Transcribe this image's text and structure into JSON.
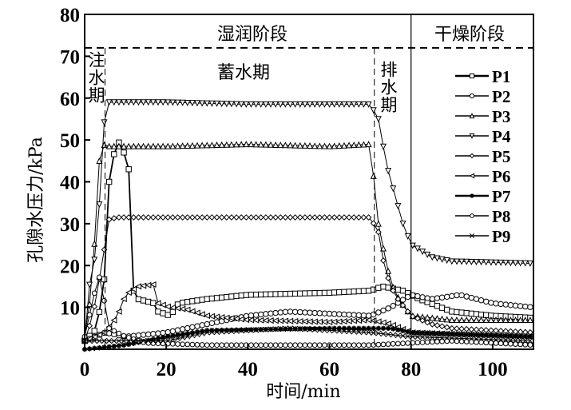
{
  "chart_data": {
    "type": "line",
    "xlabel": "时间/min",
    "ylabel": "孔隙水压力/kPa",
    "xlim": [
      0,
      110
    ],
    "ylim": [
      0,
      80
    ],
    "xticks": [
      "0",
      "20",
      "40",
      "60",
      "80",
      "100"
    ],
    "yticks": [
      "10",
      "20",
      "30",
      "40",
      "50",
      "60",
      "70",
      "80"
    ],
    "legend_position": "top-right",
    "reference_lines": {
      "horizontal_dashed_y": 72,
      "vertical_dashed_x": [
        5,
        71
      ],
      "vertical_solid_x": 80
    },
    "annotations": {
      "wet_stage": "湿润阶段",
      "dry_stage": "干燥阶段",
      "injection": "注水期",
      "storage": "蓄水期",
      "drainage": "排水期"
    },
    "series": [
      {
        "name": "P1",
        "marker": "square",
        "points": [
          [
            0,
            2
          ],
          [
            3,
            5
          ],
          [
            5,
            18
          ],
          [
            6,
            40
          ],
          [
            8,
            51
          ],
          [
            9,
            47
          ],
          [
            10,
            47
          ],
          [
            11,
            42
          ],
          [
            12,
            14
          ],
          [
            13,
            12
          ],
          [
            17,
            11
          ],
          [
            18,
            9
          ],
          [
            21,
            8
          ],
          [
            23,
            11
          ],
          [
            30,
            12
          ],
          [
            40,
            13
          ],
          [
            60,
            13.5
          ],
          [
            70,
            14
          ],
          [
            73,
            15
          ],
          [
            78,
            14
          ],
          [
            82,
            12
          ],
          [
            90,
            9
          ],
          [
            100,
            8
          ],
          [
            110,
            7.5
          ]
        ]
      },
      {
        "name": "P2",
        "marker": "circle",
        "points": [
          [
            0,
            2
          ],
          [
            5,
            4
          ],
          [
            10,
            3
          ],
          [
            20,
            4
          ],
          [
            30,
            6
          ],
          [
            40,
            8
          ],
          [
            50,
            9
          ],
          [
            70,
            8
          ],
          [
            75,
            10
          ],
          [
            80,
            13
          ],
          [
            85,
            12
          ],
          [
            92,
            13
          ],
          [
            100,
            11
          ],
          [
            110,
            10
          ]
        ]
      },
      {
        "name": "P3",
        "marker": "triangle-up",
        "points": [
          [
            0,
            3
          ],
          [
            2,
            16
          ],
          [
            3,
            39
          ],
          [
            4,
            49
          ],
          [
            6,
            48.5
          ],
          [
            20,
            48.5
          ],
          [
            40,
            49
          ],
          [
            60,
            48.5
          ],
          [
            70,
            49
          ],
          [
            72,
            30
          ],
          [
            73,
            25
          ],
          [
            75,
            16
          ],
          [
            77,
            12
          ],
          [
            80,
            8
          ],
          [
            90,
            7
          ],
          [
            110,
            7
          ]
        ]
      },
      {
        "name": "P4",
        "marker": "triangle-down",
        "points": [
          [
            0,
            2
          ],
          [
            1,
            15
          ],
          [
            2,
            17
          ],
          [
            4,
            39
          ],
          [
            5,
            58
          ],
          [
            6,
            59
          ],
          [
            20,
            59
          ],
          [
            40,
            58.5
          ],
          [
            70,
            58.5
          ],
          [
            72,
            55
          ],
          [
            74,
            44
          ],
          [
            76,
            37
          ],
          [
            78,
            30
          ],
          [
            80,
            25
          ],
          [
            85,
            22
          ],
          [
            90,
            21
          ],
          [
            110,
            20.5
          ]
        ]
      },
      {
        "name": "P5",
        "marker": "diamond",
        "points": [
          [
            0,
            2
          ],
          [
            2,
            8
          ],
          [
            4,
            19
          ],
          [
            6,
            31
          ],
          [
            8,
            31.5
          ],
          [
            70,
            31.5
          ],
          [
            72,
            28
          ],
          [
            73,
            22
          ],
          [
            74,
            18
          ],
          [
            76,
            13
          ],
          [
            80,
            8
          ],
          [
            85,
            6
          ],
          [
            90,
            5
          ],
          [
            110,
            4
          ]
        ]
      },
      {
        "name": "P6",
        "marker": "triangle-left",
        "points": [
          [
            0,
            2
          ],
          [
            5,
            4
          ],
          [
            8,
            8
          ],
          [
            10,
            13
          ],
          [
            13,
            15
          ],
          [
            17,
            15.5
          ],
          [
            18,
            11
          ],
          [
            21,
            10
          ],
          [
            25,
            9.5
          ],
          [
            30,
            8
          ],
          [
            40,
            7
          ],
          [
            60,
            6.5
          ],
          [
            70,
            7
          ],
          [
            75,
            6
          ],
          [
            80,
            4
          ],
          [
            110,
            3
          ]
        ]
      },
      {
        "name": "P7",
        "marker": "star",
        "points": [
          [
            0,
            0
          ],
          [
            10,
            1
          ],
          [
            20,
            3
          ],
          [
            30,
            4.5
          ],
          [
            60,
            5
          ],
          [
            75,
            5
          ],
          [
            80,
            4
          ],
          [
            110,
            3
          ]
        ]
      },
      {
        "name": "P8",
        "marker": "hexagon",
        "points": [
          [
            0,
            3
          ],
          [
            3,
            16
          ],
          [
            4,
            18
          ],
          [
            5,
            10
          ],
          [
            6,
            5
          ],
          [
            10,
            3
          ],
          [
            15,
            1.5
          ],
          [
            30,
            1
          ],
          [
            70,
            1
          ],
          [
            80,
            1.5
          ],
          [
            90,
            2
          ],
          [
            110,
            1
          ]
        ]
      },
      {
        "name": "P9",
        "marker": "x",
        "points": [
          [
            0,
            2
          ],
          [
            10,
            2
          ],
          [
            20,
            2
          ],
          [
            30,
            4
          ],
          [
            50,
            5
          ],
          [
            70,
            4
          ],
          [
            80,
            3
          ],
          [
            110,
            2
          ]
        ]
      }
    ]
  }
}
